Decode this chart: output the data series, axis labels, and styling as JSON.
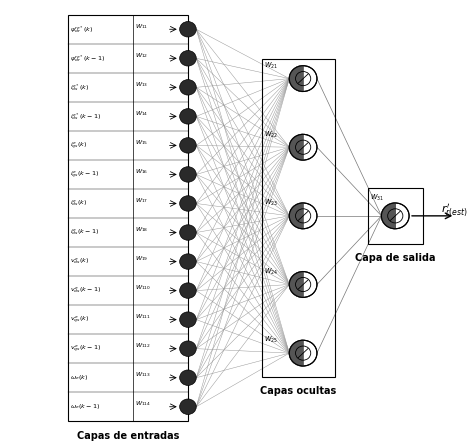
{
  "input_labels": [
    "$\\psi_{dr}^{re*}(k)$",
    "$\\psi_{dr}^{re*}(k-1)$",
    "$i_{ds}^{e*}(k)$",
    "$i_{ds}^{e*}(k-1)$",
    "$i_{qs}^{e}(k)$",
    "$i_{qs}^{e}(k-1)$",
    "$i_{ds}^{e}(k)$",
    "$i_{ds}^{e}(k-1)$",
    "$v_{ds}^{e}(k)$",
    "$v_{ds}^{e}(k-1)$",
    "$v_{qs}^{e}(k)$",
    "$v_{qs}^{e}(k-1)$",
    "$\\omega_e(k)$",
    "$\\omega_e(k-1)$"
  ],
  "input_weights": [
    "$W_{11}$",
    "$W_{12}$",
    "$W_{13}$",
    "$W_{14}$",
    "$W_{15}$",
    "$W_{16}$",
    "$W_{17}$",
    "$W_{18}$",
    "$W_{19}$",
    "$W_{110}$",
    "$W_{111}$",
    "$W_{112}$",
    "$W_{113}$",
    "$W_{114}$"
  ],
  "hidden_weights": [
    "$W_{21}$",
    "$W_{22}$",
    "$W_{23}$",
    "$W_{24}$",
    "$W_{25}$"
  ],
  "output_weight": "$W_{31}$",
  "caption_input": "Capas de entradas",
  "caption_hidden": "Capas ocultas",
  "caption_output": "Capa de salida",
  "n_inputs": 14,
  "n_hidden": 5,
  "node_color": "#2a2a2a",
  "line_color": "#999999",
  "bg_color": "#ffffff"
}
